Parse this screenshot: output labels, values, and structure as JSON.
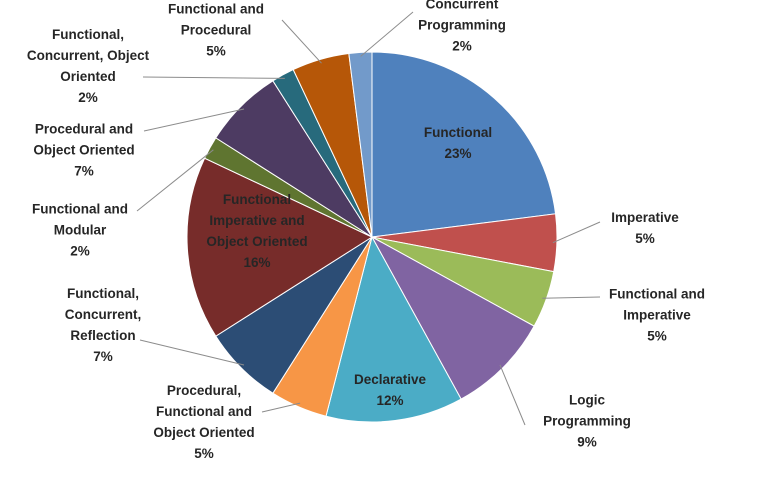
{
  "chart_data": {
    "type": "pie",
    "categories": [
      "Functional",
      "Imperative",
      "Functional and Imperative",
      "Logic Programming",
      "Declarative",
      "Procedural, Functional and Object Oriented",
      "Functional, Concurrent, Reflection",
      "Functional Imperative and Object Oriented",
      "Functional and Modular",
      "Procedural and Object Oriented",
      "Functional, Concurrent, Object Oriented",
      "Functional and Procedural",
      "Concurrent Programming"
    ],
    "values": [
      23,
      5,
      5,
      9,
      12,
      5,
      7,
      16,
      2,
      7,
      2,
      5,
      2
    ],
    "value_labels": [
      "23%",
      "5%",
      "5%",
      "9%",
      "12%",
      "5%",
      "7%",
      "16%",
      "2%",
      "7%",
      "2%",
      "5%",
      "2%"
    ],
    "colors": [
      "#4f81bd",
      "#c0504d",
      "#9bbb59",
      "#8064a2",
      "#4bacc6",
      "#f79646",
      "#2c4d75",
      "#772c2a",
      "#5f7530",
      "#4d3b62",
      "#276a7c",
      "#b65708",
      "#729aca"
    ]
  }
}
